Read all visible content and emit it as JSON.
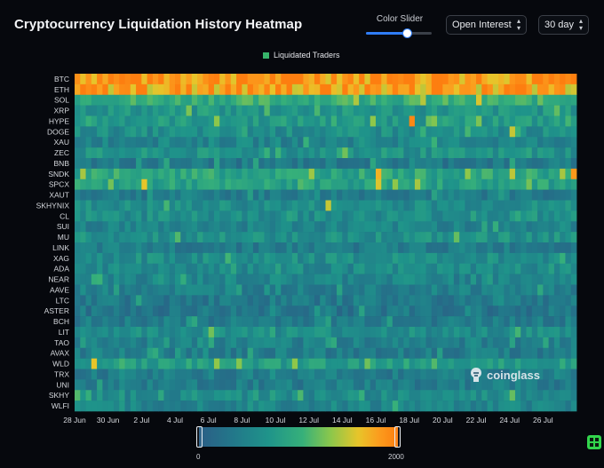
{
  "title": "Cryptocurrency Liquidation History Heatmap",
  "controls": {
    "slider_label": "Color Slider",
    "slider_value": 0.62,
    "metric_select": "Open Interest",
    "range_select": "30 day"
  },
  "legend": {
    "label": "Liquidated Traders",
    "color": "#37b46a"
  },
  "colorbar": {
    "min": "0",
    "max": "2000"
  },
  "watermark": "coinglass",
  "icons": {
    "corner": "grid-icon",
    "watermark": "coinglass-logo-icon"
  },
  "chart_data": {
    "type": "heatmap",
    "title": "Cryptocurrency Liquidation History Heatmap",
    "rows": [
      "BTC",
      "ETH",
      "SOL",
      "XRP",
      "HYPE",
      "DOGE",
      "XAU",
      "ZEC",
      "BNB",
      "SNDK",
      "SPCX",
      "XAUT",
      "SKHYNIX",
      "CL",
      "SUI",
      "MU",
      "LINK",
      "XAG",
      "ADA",
      "NEAR",
      "AAVE",
      "LTC",
      "ASTER",
      "BCH",
      "LIT",
      "TAO",
      "AVAX",
      "WLD",
      "TRX",
      "UNI",
      "SKHY",
      "WLFI"
    ],
    "x_ticks": [
      "28 Jun",
      "30 Jun",
      "2 Jul",
      "4 Jul",
      "6 Jul",
      "8 Jul",
      "10 Jul",
      "12 Jul",
      "14 Jul",
      "16 Jul",
      "18 Jul",
      "20 Jul",
      "22 Jul",
      "24 Jul",
      "26 Jul"
    ],
    "columns": 90,
    "color_range": [
      0,
      2000
    ],
    "row_level": [
      0.95,
      0.9,
      0.5,
      0.35,
      0.38,
      0.3,
      0.25,
      0.33,
      0.18,
      0.45,
      0.42,
      0.2,
      0.3,
      0.3,
      0.25,
      0.32,
      0.2,
      0.3,
      0.28,
      0.25,
      0.23,
      0.18,
      0.16,
      0.2,
      0.3,
      0.22,
      0.2,
      0.4,
      0.2,
      0.2,
      0.28,
      0.25
    ],
    "hotspots": [
      {
        "row": "HYPE",
        "col": "17 Jul",
        "level": 0.97
      },
      {
        "row": "DOGE",
        "col": "23 Jul",
        "level": 0.75
      },
      {
        "row": "SNDK",
        "col": "16 Jul",
        "level": 0.85
      },
      {
        "row": "SPCX",
        "col": "2 Jul",
        "level": 0.8
      },
      {
        "row": "SPCX",
        "col": "16 Jul",
        "level": 0.78
      },
      {
        "row": "SNDK",
        "col": "27 Jul",
        "level": 0.92
      },
      {
        "row": "SKHYNIX",
        "col": "13 Jul",
        "level": 0.75
      },
      {
        "row": "LIT",
        "col": "6 Jul",
        "level": 0.62
      },
      {
        "row": "WLD",
        "col": "1 Jul",
        "level": 0.8
      },
      {
        "row": "SKHY",
        "col": "23 Jul",
        "level": 0.6
      }
    ]
  }
}
